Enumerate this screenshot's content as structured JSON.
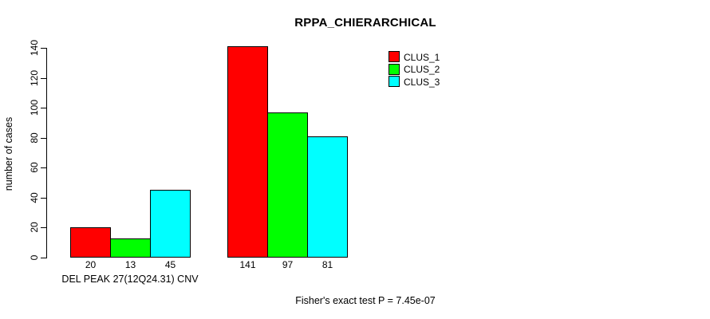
{
  "chart_data": {
    "type": "bar",
    "title": "RPPA_CHIERARCHICAL",
    "ylabel": "number of cases",
    "xlabel": "",
    "ylim": [
      0,
      140
    ],
    "yticks": [
      0,
      20,
      40,
      60,
      80,
      100,
      120,
      140
    ],
    "grid": false,
    "series": [
      {
        "name": "CLUS_1",
        "color": "#FF0000"
      },
      {
        "name": "CLUS_2",
        "color": "#00FF00"
      },
      {
        "name": "CLUS_3",
        "color": "#00FFFF"
      }
    ],
    "groups": [
      {
        "label": "DEL PEAK 27(12Q24.31) CNV",
        "values": [
          20,
          13,
          45
        ]
      },
      {
        "label": "",
        "values": [
          141,
          97,
          81
        ]
      }
    ],
    "bar_value_labels": [
      "20",
      "13",
      "45",
      "141",
      "97",
      "81"
    ],
    "legend": {
      "position": "top-right",
      "entries": [
        "CLUS_1",
        "CLUS_2",
        "CLUS_3"
      ]
    },
    "footnote": "Fisher's exact test P = 7.45e-07",
    "axis_color": "#000000",
    "bar_border_color": "#000000"
  }
}
